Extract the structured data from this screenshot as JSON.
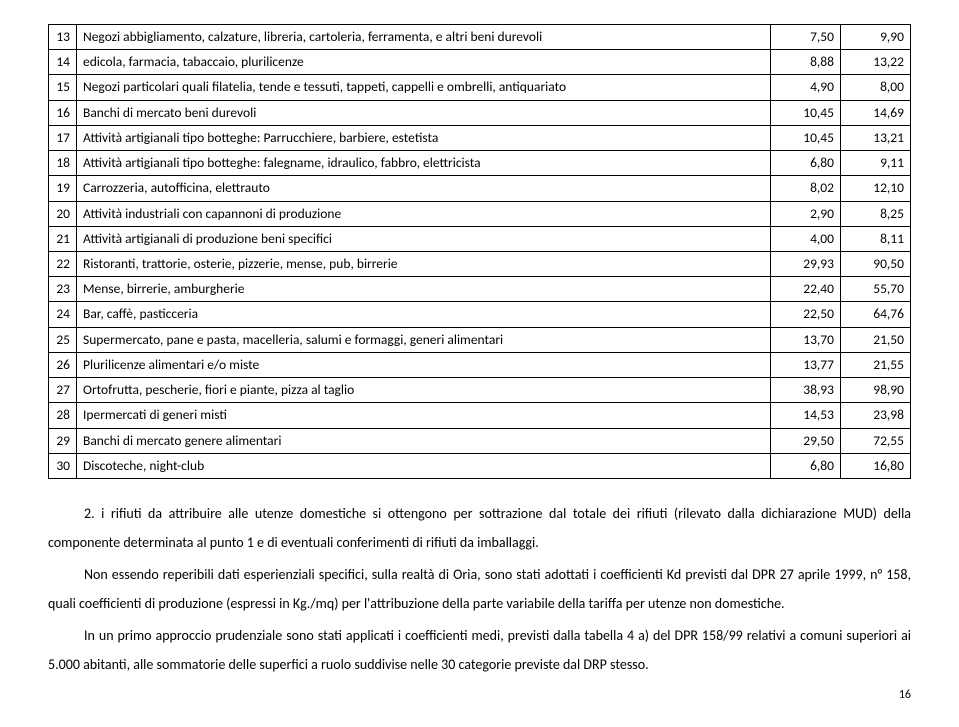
{
  "table": {
    "rows": [
      {
        "n": "13",
        "desc": "Negozi abbigliamento, calzature, libreria, cartoleria, ferramenta, e altri beni durevoli",
        "v1": "7,50",
        "v2": "9,90"
      },
      {
        "n": "14",
        "desc": "edicola, farmacia, tabaccaio, plurilicenze",
        "v1": "8,88",
        "v2": "13,22"
      },
      {
        "n": "15",
        "desc": "Negozi particolari quali filatelia, tende e tessuti, tappeti, cappelli e ombrelli, antiquariato",
        "v1": "4,90",
        "v2": "8,00"
      },
      {
        "n": "16",
        "desc": "Banchi di mercato beni durevoli",
        "v1": "10,45",
        "v2": "14,69"
      },
      {
        "n": "17",
        "desc": "Attività artigianali tipo botteghe: Parrucchiere, barbiere, estetista",
        "v1": "10,45",
        "v2": "13,21"
      },
      {
        "n": "18",
        "desc": "Attività artigianali tipo botteghe: falegname, idraulico, fabbro, elettricista",
        "v1": "6,80",
        "v2": "9,11"
      },
      {
        "n": "19",
        "desc": "Carrozzeria, autofficina, elettrauto",
        "v1": "8,02",
        "v2": "12,10"
      },
      {
        "n": "20",
        "desc": "Attività industriali con capannoni di produzione",
        "v1": "2,90",
        "v2": "8,25"
      },
      {
        "n": "21",
        "desc": "Attività artigianali di produzione beni specifici",
        "v1": "4,00",
        "v2": "8,11"
      },
      {
        "n": "22",
        "desc": "Ristoranti, trattorie, osterie, pizzerie, mense, pub, birrerie",
        "v1": "29,93",
        "v2": "90,50"
      },
      {
        "n": "23",
        "desc": "Mense, birrerie, amburgherie",
        "v1": "22,40",
        "v2": "55,70"
      },
      {
        "n": "24",
        "desc": "Bar, caffè, pasticceria",
        "v1": "22,50",
        "v2": "64,76"
      },
      {
        "n": "25",
        "desc": "Supermercato, pane e pasta, macelleria, salumi e formaggi, generi alimentari",
        "v1": "13,70",
        "v2": "21,50"
      },
      {
        "n": "26",
        "desc": "Plurilicenze alimentari e/o miste",
        "v1": "13,77",
        "v2": "21,55"
      },
      {
        "n": "27",
        "desc": "Ortofrutta, pescherie, fiori e piante, pizza al taglio",
        "v1": "38,93",
        "v2": "98,90"
      },
      {
        "n": "28",
        "desc": "Ipermercati di generi misti",
        "v1": "14,53",
        "v2": "23,98"
      },
      {
        "n": "29",
        "desc": "Banchi di mercato genere alimentari",
        "v1": "29,50",
        "v2": "72,55"
      },
      {
        "n": "30",
        "desc": "Discoteche, night-club",
        "v1": "6,80",
        "v2": "16,80"
      }
    ]
  },
  "paragraphs": {
    "p1": "2. i rifiuti da attribuire alle utenze domestiche si ottengono per sottrazione dal totale dei rifiuti (rilevato dalla dichiarazione MUD) della componente determinata al punto 1 e di eventuali conferimenti di rifiuti da imballaggi.",
    "p2": "Non essendo reperibili dati esperienziali specifici, sulla realtà di Oria, sono stati adottati i coefficienti Kd previsti dal DPR 27 aprile 1999, n° 158, quali coefficienti di produzione (espressi in Kg./mq) per l'attribuzione della parte variabile della tariffa per utenze non domestiche.",
    "p3": "In un primo approccio prudenziale  sono stati applicati i coefficienti medi, previsti dalla tabella 4 a) del DPR 158/99  relativi  a  comuni superiori ai  5.000 abitanti, alle sommatorie delle  superfici a ruolo suddivise nelle 30 categorie previste dal DRP stesso."
  },
  "pagenum": "16"
}
